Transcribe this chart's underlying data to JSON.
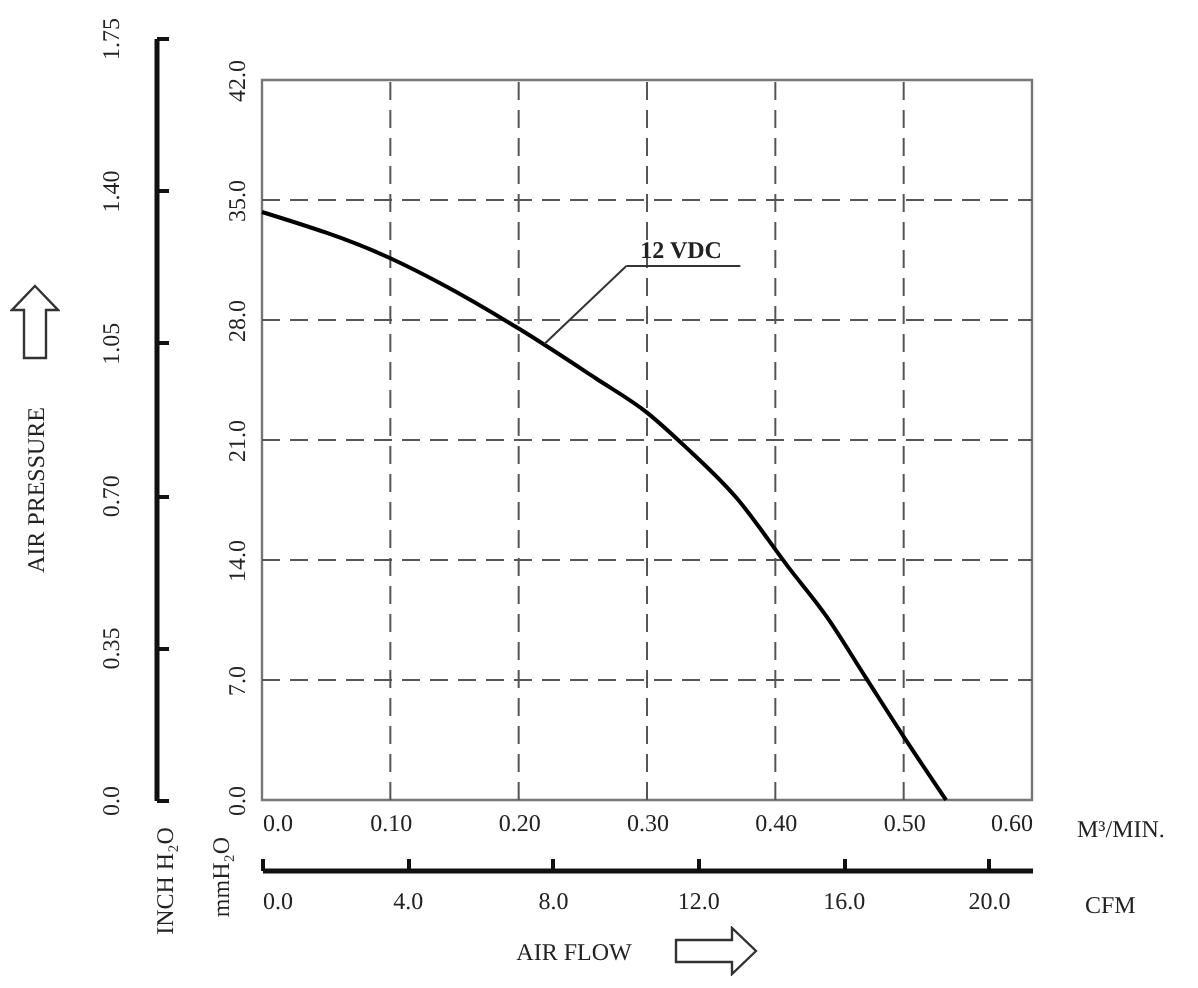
{
  "chart_data": {
    "type": "line",
    "x": [
      0,
      0.1,
      0.14,
      0.2,
      0.26,
      0.3,
      0.33,
      0.37,
      0.41,
      0.44,
      0.47,
      0.5,
      0.533
    ],
    "series": [
      {
        "color": "#000000",
        "values": [
          34.3,
          31.6,
          30.1,
          27.5,
          24.6,
          22.6,
          20.6,
          17.6,
          13.6,
          10.7,
          7.2,
          3.7,
          0
        ]
      }
    ],
    "xlim": [
      0,
      0.6
    ],
    "xticks": [
      {
        "value": 0,
        "label": "0.0"
      },
      {
        "value": 0.1,
        "label": "0.10"
      },
      {
        "value": 0.2,
        "label": "0.20"
      },
      {
        "value": 0.3,
        "label": "0.30"
      },
      {
        "value": 0.4,
        "label": "0.40"
      },
      {
        "value": 0.5,
        "label": "0.50"
      },
      {
        "value": 0.6,
        "label": "0.60"
      }
    ],
    "xlabel": "M³/MIN.",
    "x2lim": [
      0,
      21.2
    ],
    "x2ticks": [
      {
        "value": 0,
        "label": "0.0"
      },
      {
        "value": 4,
        "label": "4.0"
      },
      {
        "value": 8,
        "label": "8.0"
      },
      {
        "value": 12,
        "label": "12.0"
      },
      {
        "value": 16,
        "label": "16.0"
      },
      {
        "value": 20,
        "label": "20.0"
      }
    ],
    "x2label": "CFM",
    "ylim": [
      0,
      42
    ],
    "yticks": [
      {
        "value": 0,
        "label": "0.0"
      },
      {
        "value": 7,
        "label": "7.0"
      },
      {
        "value": 14,
        "label": "14.0"
      },
      {
        "value": 21,
        "label": "21.0"
      },
      {
        "value": 28,
        "label": "28.0"
      },
      {
        "value": 35,
        "label": "35.0"
      },
      {
        "value": 42,
        "label": "42.0"
      }
    ],
    "ylabel": "mmH₂O",
    "y2lim": [
      0,
      1.75
    ],
    "y2ticks": [
      {
        "value": 0,
        "label": "0.0"
      },
      1.05,
      0.35,
      {
        "value": 0.7,
        "label": "0.70"
      },
      {
        "value": 1.4,
        "label": "1.40"
      },
      1.75
    ],
    "y2label": "INCH H₂O",
    "grid": true,
    "annotations": [
      {
        "text": "12 VDC",
        "x": 0.22,
        "y": 26.6
      },
      "AIR PRESSURE",
      "AIR FLOW"
    ]
  }
}
